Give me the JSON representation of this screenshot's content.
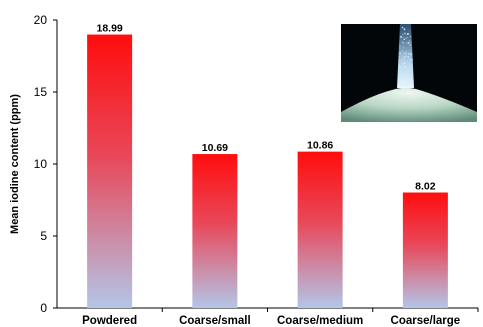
{
  "chart_data": {
    "type": "bar",
    "categories": [
      "Powdered",
      "Coarse/small",
      "Coarse/medium",
      "Coarse/large"
    ],
    "values": [
      18.99,
      10.69,
      10.86,
      8.02
    ],
    "value_labels": [
      "18.99",
      "10.69",
      "10.86",
      "8.02"
    ],
    "title": "",
    "xlabel": "",
    "ylabel": "Mean iodine content (ppm)",
    "ylim": [
      0,
      20
    ],
    "yticks": [
      0,
      5,
      10,
      15,
      20
    ],
    "grid": false,
    "bar_gradient": {
      "top": "#ff0d0d",
      "bottom": "#b3c6e8"
    },
    "inset": "photo of salt crystals pouring into a pile"
  }
}
